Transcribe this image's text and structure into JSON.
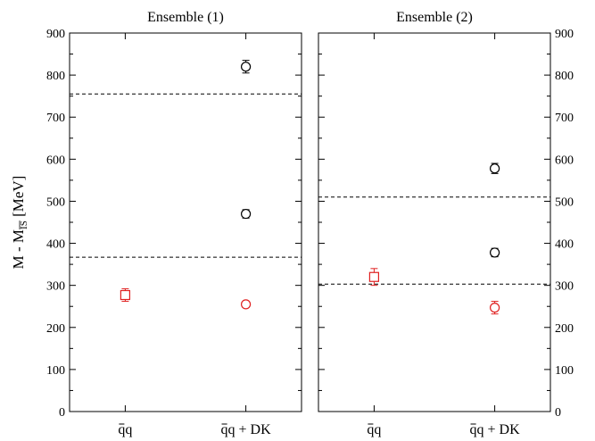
{
  "chart_data": {
    "type": "scatter",
    "ylabel": "M - M",
    "ylabel_subscript": "IS",
    "ylabel_unit": "[MeV]",
    "ylim": [
      0,
      900
    ],
    "yticks": [
      "0",
      "100",
      "200",
      "300",
      "400",
      "500",
      "600",
      "700",
      "800",
      "900"
    ],
    "categories": [
      "qq",
      "qq + DK"
    ],
    "category_overlines": [
      "q",
      "q"
    ],
    "colors": {
      "black": "#000000",
      "red": "#e02020"
    },
    "panels": [
      {
        "title": "Ensemble (1)",
        "reference_lines": [
          755,
          367
        ],
        "points": [
          {
            "category": 0,
            "y": 277,
            "err": 15,
            "marker": "square",
            "color": "red"
          },
          {
            "category": 1,
            "y": 255,
            "err": 7,
            "marker": "circle",
            "color": "red"
          },
          {
            "category": 1,
            "y": 470,
            "err": 10,
            "marker": "circle",
            "color": "black"
          },
          {
            "category": 1,
            "y": 820,
            "err": 15,
            "marker": "circle",
            "color": "black"
          }
        ]
      },
      {
        "title": "Ensemble (2)",
        "reference_lines": [
          510,
          303
        ],
        "points": [
          {
            "category": 0,
            "y": 320,
            "err": 20,
            "marker": "square",
            "color": "red"
          },
          {
            "category": 1,
            "y": 247,
            "err": 15,
            "marker": "circle",
            "color": "red"
          },
          {
            "category": 1,
            "y": 378,
            "err": 10,
            "marker": "circle",
            "color": "black"
          },
          {
            "category": 1,
            "y": 578,
            "err": 12,
            "marker": "circle",
            "color": "black"
          }
        ]
      }
    ]
  }
}
